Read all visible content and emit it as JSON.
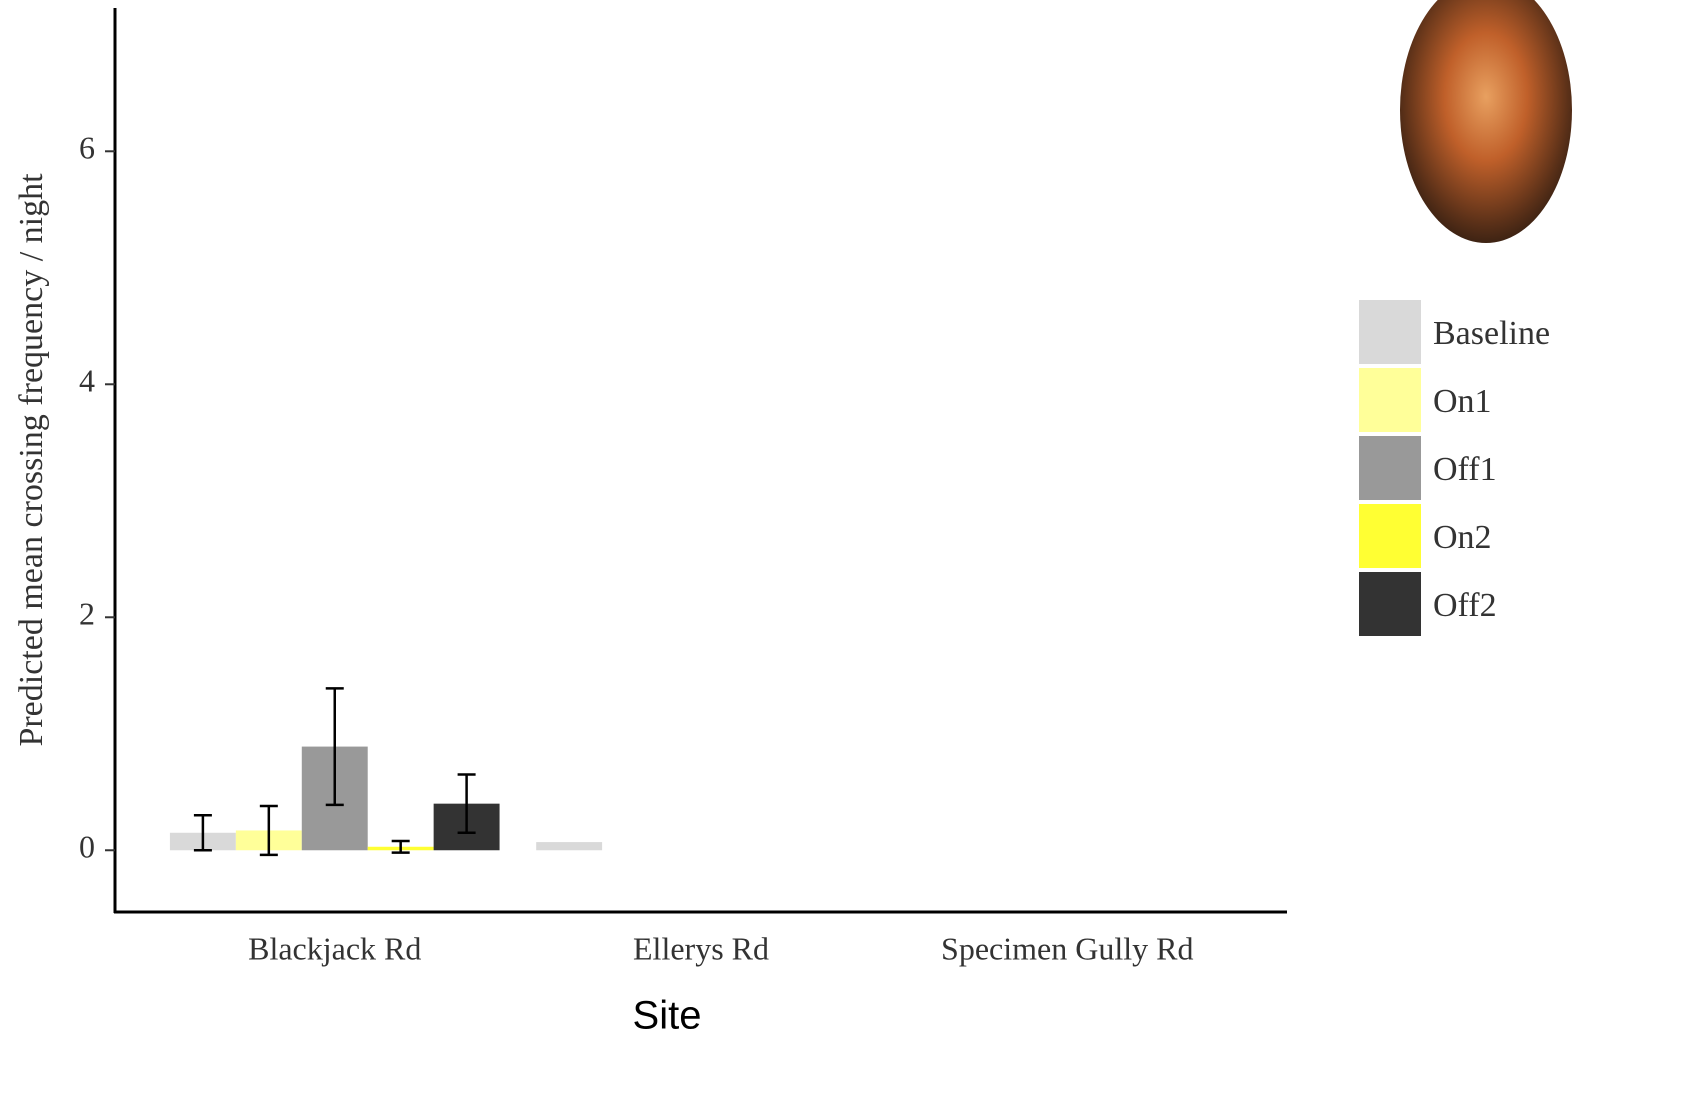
{
  "chart_data": {
    "type": "bar",
    "x_label": "Site",
    "y_label": "Predicted mean crossing frequency / night",
    "categories": [
      "Blackjack Rd",
      "Ellerys Rd",
      "Specimen Gully Rd"
    ],
    "series": [
      {
        "name": "Baseline",
        "color": "#d9d9d9",
        "values": [
          0.15,
          0.07,
          null
        ],
        "errors": [
          0.15,
          null,
          null
        ]
      },
      {
        "name": "On1",
        "color": "#ffff99",
        "values": [
          0.17,
          null,
          null
        ],
        "errors": [
          0.21,
          null,
          null
        ]
      },
      {
        "name": "Off1",
        "color": "#999999",
        "values": [
          0.89,
          null,
          null
        ],
        "errors": [
          0.5,
          null,
          null
        ]
      },
      {
        "name": "On2",
        "color": "#ffff33",
        "values": [
          0.03,
          null,
          null
        ],
        "errors": [
          0.05,
          null,
          null
        ]
      },
      {
        "name": "Off2",
        "color": "#333333",
        "values": [
          0.4,
          null,
          null
        ],
        "errors": [
          0.25,
          null,
          null
        ]
      }
    ],
    "ylim": [
      -0.53,
      7.23
    ],
    "yticks": [
      0,
      2,
      4,
      6
    ],
    "grid": false,
    "legend": "right"
  }
}
